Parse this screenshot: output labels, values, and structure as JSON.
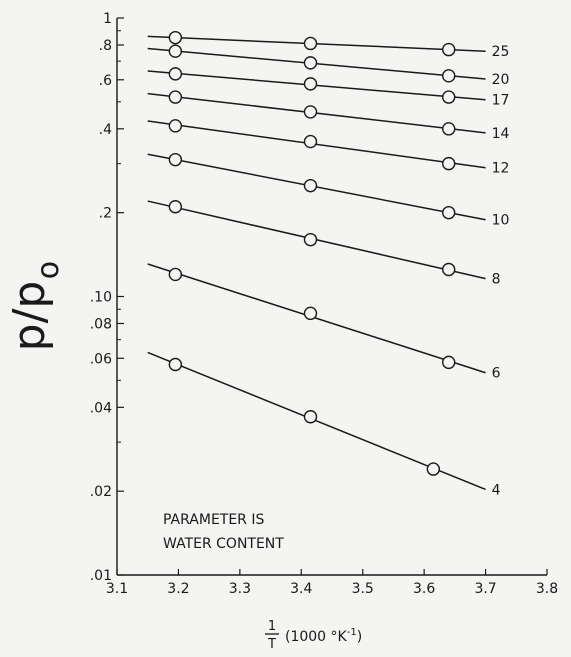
{
  "chart_data": {
    "type": "line",
    "title": "",
    "ylabel": "p/p",
    "ylabel_sub": "o",
    "xlabel_frac_num": "1",
    "xlabel_frac_den": "T",
    "xlabel_units": "(1000 °K",
    "xlabel_units_sup": "-1",
    "xlabel_units_close": ")",
    "annotation_line1": "PARAMETER IS",
    "annotation_line2": "WATER CONTENT",
    "xlim": [
      3.1,
      3.8
    ],
    "ylim": [
      0.01,
      1
    ],
    "yscale": "log",
    "x_ticks": [
      "3.1",
      "3.2",
      "3.3",
      "3.4",
      "3.5",
      "3.6",
      "3.7",
      "3.8"
    ],
    "y_ticks": [
      {
        "value": 1,
        "label": "1"
      },
      {
        "value": 0.8,
        "label": ".8"
      },
      {
        "value": 0.6,
        "label": ".6"
      },
      {
        "value": 0.4,
        "label": ".4"
      },
      {
        "value": 0.2,
        "label": ".2"
      },
      {
        "value": 0.1,
        "label": ".10"
      },
      {
        "value": 0.08,
        "label": ".08"
      },
      {
        "value": 0.06,
        "label": ".06"
      },
      {
        "value": 0.04,
        "label": ".04"
      },
      {
        "value": 0.02,
        "label": ".02"
      },
      {
        "value": 0.01,
        "label": ".01"
      }
    ],
    "y_minor_ticks": [
      0.9,
      0.7,
      0.5,
      0.3,
      0.09,
      0.07,
      0.05,
      0.03
    ],
    "line_x_range": [
      3.15,
      3.7
    ],
    "series": [
      {
        "name": "25",
        "x": [
          3.195,
          3.415,
          3.64
        ],
        "y": [
          0.85,
          0.81,
          0.77
        ]
      },
      {
        "name": "20",
        "x": [
          3.195,
          3.415,
          3.64
        ],
        "y": [
          0.76,
          0.69,
          0.62
        ]
      },
      {
        "name": "17",
        "x": [
          3.195,
          3.415,
          3.64
        ],
        "y": [
          0.63,
          0.58,
          0.52
        ]
      },
      {
        "name": "14",
        "x": [
          3.195,
          3.415,
          3.64
        ],
        "y": [
          0.52,
          0.46,
          0.4
        ]
      },
      {
        "name": "12",
        "x": [
          3.195,
          3.415,
          3.64
        ],
        "y": [
          0.41,
          0.36,
          0.3
        ]
      },
      {
        "name": "10",
        "x": [
          3.195,
          3.415,
          3.64
        ],
        "y": [
          0.31,
          0.25,
          0.2
        ]
      },
      {
        "name": "8",
        "x": [
          3.195,
          3.415,
          3.64
        ],
        "y": [
          0.21,
          0.16,
          0.125
        ]
      },
      {
        "name": "6",
        "x": [
          3.195,
          3.415,
          3.64
        ],
        "y": [
          0.12,
          0.087,
          0.058
        ]
      },
      {
        "name": "4",
        "x": [
          3.195,
          3.415,
          3.615
        ],
        "y": [
          0.057,
          0.037,
          0.024
        ]
      }
    ]
  }
}
